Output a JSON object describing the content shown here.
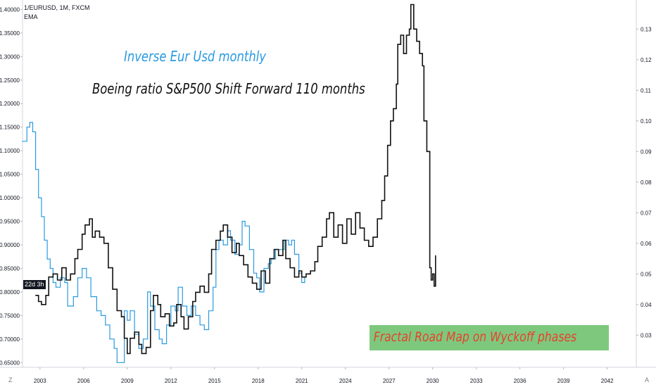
{
  "header": {
    "symbol_line": "1/EURUSD, 1M, FXCM",
    "indicator": "EMA"
  },
  "badge": "22d 3h",
  "corner_left": "Z",
  "corner_right": "A",
  "annotations": {
    "blue_text": "Inverse Eur Usd monthly",
    "black_text": "Boeing ratio S&P500 Shift Forward 110 months",
    "box_text": "Fractal Road Map on Wyckoff phases",
    "box_color": "#7ec87e",
    "box_text_color": "#e8402a"
  },
  "chart_data": {
    "type": "line",
    "x_axis": {
      "ticks": [
        "2003",
        "2006",
        "2009",
        "2012",
        "2015",
        "2018",
        "2021",
        "2024",
        "2027",
        "2030",
        "2033",
        "2036",
        "2039",
        "2042"
      ],
      "range": [
        2001.8,
        2044.0
      ]
    },
    "y_left": {
      "ticks": [
        "0.65000",
        "0.70000",
        "0.75000",
        "0.80000",
        "0.85000",
        "0.90000",
        "0.95000",
        "1.00000",
        "1.05000",
        "1.10000",
        "1.15000",
        "1.20000",
        "1.25000",
        "1.30000",
        "1.35000",
        "1.40000"
      ],
      "range": [
        0.64,
        1.42
      ]
    },
    "y_right": {
      "ticks": [
        "0.03",
        "0.04",
        "0.05",
        "0.06",
        "0.07",
        "0.08",
        "0.09",
        "0.10",
        "0.11",
        "0.12",
        "0.13"
      ],
      "range": [
        0.0195,
        0.1395
      ]
    },
    "series": [
      {
        "name": "1/EURUSD",
        "color": "#2a9ae0",
        "axis": "left",
        "points": [
          [
            2001.8,
            1.12
          ],
          [
            2002.1,
            1.15
          ],
          [
            2002.3,
            1.16
          ],
          [
            2002.5,
            1.14
          ],
          [
            2002.7,
            1.06
          ],
          [
            2002.9,
            1.0
          ],
          [
            2003.1,
            0.96
          ],
          [
            2003.3,
            0.91
          ],
          [
            2003.5,
            0.87
          ],
          [
            2003.7,
            0.85
          ],
          [
            2003.9,
            0.82
          ],
          [
            2004.1,
            0.81
          ],
          [
            2004.4,
            0.83
          ],
          [
            2004.7,
            0.82
          ],
          [
            2004.9,
            0.77
          ],
          [
            2005.1,
            0.77
          ],
          [
            2005.3,
            0.79
          ],
          [
            2005.6,
            0.83
          ],
          [
            2005.9,
            0.85
          ],
          [
            2006.2,
            0.83
          ],
          [
            2006.5,
            0.79
          ],
          [
            2006.9,
            0.76
          ],
          [
            2007.2,
            0.75
          ],
          [
            2007.5,
            0.73
          ],
          [
            2007.8,
            0.7
          ],
          [
            2008.1,
            0.68
          ],
          [
            2008.3,
            0.65
          ],
          [
            2008.6,
            0.65
          ],
          [
            2008.8,
            0.76
          ],
          [
            2009.0,
            0.74
          ],
          [
            2009.2,
            0.76
          ],
          [
            2009.5,
            0.71
          ],
          [
            2009.8,
            0.68
          ],
          [
            2010.1,
            0.7
          ],
          [
            2010.4,
            0.8
          ],
          [
            2010.6,
            0.77
          ],
          [
            2010.9,
            0.72
          ],
          [
            2011.2,
            0.7
          ],
          [
            2011.4,
            0.69
          ],
          [
            2011.7,
            0.73
          ],
          [
            2012.0,
            0.77
          ],
          [
            2012.3,
            0.76
          ],
          [
            2012.5,
            0.81
          ],
          [
            2012.8,
            0.77
          ],
          [
            2013.1,
            0.75
          ],
          [
            2013.4,
            0.77
          ],
          [
            2013.7,
            0.75
          ],
          [
            2014.0,
            0.73
          ],
          [
            2014.3,
            0.72
          ],
          [
            2014.6,
            0.76
          ],
          [
            2014.9,
            0.81
          ],
          [
            2015.1,
            0.89
          ],
          [
            2015.3,
            0.91
          ],
          [
            2015.6,
            0.9
          ],
          [
            2015.9,
            0.93
          ],
          [
            2016.1,
            0.91
          ],
          [
            2016.4,
            0.88
          ],
          [
            2016.7,
            0.9
          ],
          [
            2016.9,
            0.95
          ],
          [
            2017.1,
            0.94
          ],
          [
            2017.4,
            0.89
          ],
          [
            2017.7,
            0.84
          ],
          [
            2017.9,
            0.83
          ],
          [
            2018.1,
            0.8
          ],
          [
            2018.4,
            0.85
          ],
          [
            2018.7,
            0.86
          ],
          [
            2018.9,
            0.87
          ],
          [
            2019.2,
            0.89
          ],
          [
            2019.5,
            0.89
          ],
          [
            2019.8,
            0.91
          ],
          [
            2020.1,
            0.9
          ],
          [
            2020.3,
            0.91
          ],
          [
            2020.5,
            0.88
          ],
          [
            2020.8,
            0.84
          ],
          [
            2021.0,
            0.82
          ],
          [
            2021.2,
            0.83
          ]
        ]
      },
      {
        "name": "Boeing ratio S&P500 shifted",
        "color": "#111111",
        "axis": "right",
        "points": [
          [
            2002.7,
            0.043
          ],
          [
            2002.9,
            0.041
          ],
          [
            2003.1,
            0.04
          ],
          [
            2003.4,
            0.043
          ],
          [
            2003.6,
            0.049
          ],
          [
            2003.9,
            0.05
          ],
          [
            2004.2,
            0.048
          ],
          [
            2004.5,
            0.052
          ],
          [
            2004.8,
            0.048
          ],
          [
            2005.1,
            0.05
          ],
          [
            2005.4,
            0.055
          ],
          [
            2005.6,
            0.058
          ],
          [
            2005.9,
            0.063
          ],
          [
            2006.1,
            0.066
          ],
          [
            2006.4,
            0.068
          ],
          [
            2006.6,
            0.062
          ],
          [
            2006.8,
            0.064
          ],
          [
            2007.1,
            0.062
          ],
          [
            2007.4,
            0.06
          ],
          [
            2007.7,
            0.052
          ],
          [
            2008.0,
            0.045
          ],
          [
            2008.3,
            0.038
          ],
          [
            2008.6,
            0.036
          ],
          [
            2008.8,
            0.029
          ],
          [
            2009.0,
            0.024
          ],
          [
            2009.2,
            0.029
          ],
          [
            2009.5,
            0.031
          ],
          [
            2009.8,
            0.027
          ],
          [
            2010.0,
            0.024
          ],
          [
            2010.3,
            0.026
          ],
          [
            2010.6,
            0.038
          ],
          [
            2010.8,
            0.043
          ],
          [
            2011.1,
            0.04
          ],
          [
            2011.3,
            0.036
          ],
          [
            2011.6,
            0.037
          ],
          [
            2011.9,
            0.033
          ],
          [
            2012.2,
            0.034
          ],
          [
            2012.4,
            0.04
          ],
          [
            2012.7,
            0.036
          ],
          [
            2012.9,
            0.032
          ],
          [
            2013.2,
            0.036
          ],
          [
            2013.5,
            0.041
          ],
          [
            2013.7,
            0.044
          ],
          [
            2014.0,
            0.046
          ],
          [
            2014.3,
            0.044
          ],
          [
            2014.6,
            0.05
          ],
          [
            2014.8,
            0.058
          ],
          [
            2015.1,
            0.061
          ],
          [
            2015.4,
            0.064
          ],
          [
            2015.6,
            0.066
          ],
          [
            2015.9,
            0.062
          ],
          [
            2016.2,
            0.057
          ],
          [
            2016.5,
            0.06
          ],
          [
            2016.7,
            0.056
          ],
          [
            2017.0,
            0.053
          ],
          [
            2017.3,
            0.049
          ],
          [
            2017.6,
            0.047
          ],
          [
            2017.9,
            0.045
          ],
          [
            2018.2,
            0.051
          ],
          [
            2018.5,
            0.047
          ],
          [
            2018.8,
            0.055
          ],
          [
            2019.1,
            0.058
          ],
          [
            2019.4,
            0.056
          ],
          [
            2019.7,
            0.061
          ],
          [
            2019.9,
            0.055
          ],
          [
            2020.2,
            0.052
          ],
          [
            2020.5,
            0.049
          ],
          [
            2020.8,
            0.051
          ],
          [
            2021.0,
            0.049
          ],
          [
            2021.3,
            0.05
          ],
          [
            2021.6,
            0.051
          ],
          [
            2021.9,
            0.054
          ],
          [
            2022.1,
            0.059
          ],
          [
            2022.4,
            0.062
          ],
          [
            2022.7,
            0.068
          ],
          [
            2022.9,
            0.07
          ],
          [
            2023.2,
            0.062
          ],
          [
            2023.5,
            0.066
          ],
          [
            2023.8,
            0.06
          ],
          [
            2024.1,
            0.068
          ],
          [
            2024.4,
            0.063
          ],
          [
            2024.7,
            0.07
          ],
          [
            2025.0,
            0.065
          ],
          [
            2025.3,
            0.061
          ],
          [
            2025.6,
            0.059
          ],
          [
            2025.9,
            0.062
          ],
          [
            2026.2,
            0.068
          ],
          [
            2026.5,
            0.074
          ],
          [
            2026.7,
            0.082
          ],
          [
            2026.9,
            0.092
          ],
          [
            2027.1,
            0.1
          ],
          [
            2027.3,
            0.104
          ],
          [
            2027.5,
            0.112
          ],
          [
            2027.6,
            0.125
          ],
          [
            2027.8,
            0.128
          ],
          [
            2028.0,
            0.122
          ],
          [
            2028.2,
            0.128
          ],
          [
            2028.4,
            0.13
          ],
          [
            2028.5,
            0.138
          ],
          [
            2028.7,
            0.13
          ],
          [
            2028.9,
            0.126
          ],
          [
            2029.1,
            0.122
          ],
          [
            2029.3,
            0.118
          ],
          [
            2029.4,
            0.1
          ],
          [
            2029.6,
            0.09
          ],
          [
            2029.8,
            0.052
          ],
          [
            2029.9,
            0.048
          ],
          [
            2030.0,
            0.05
          ],
          [
            2030.1,
            0.046
          ],
          [
            2030.2,
            0.056
          ]
        ]
      }
    ]
  }
}
